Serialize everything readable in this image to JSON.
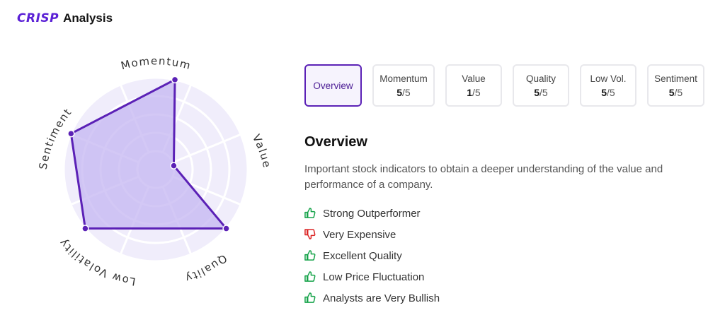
{
  "brand": {
    "logo": "CRISP",
    "title": "Analysis"
  },
  "radar": {
    "axes": [
      {
        "label": "Momentum",
        "score": 5
      },
      {
        "label": "Value",
        "score": 1
      },
      {
        "label": "Quality",
        "score": 5
      },
      {
        "label": "Low Volatility",
        "score": 5
      },
      {
        "label": "Sentiment",
        "score": 5
      }
    ],
    "max": 5,
    "colors": {
      "stroke": "#5b21b6",
      "fill": "#c4b5f1",
      "background": "#f0edfb",
      "grid": "#ffffff"
    }
  },
  "tabs": [
    {
      "label": "Overview"
    },
    {
      "label": "Momentum",
      "score": "5",
      "max": "/5"
    },
    {
      "label": "Value",
      "score": "1",
      "max": "/5"
    },
    {
      "label": "Quality",
      "score": "5",
      "max": "/5"
    },
    {
      "label": "Low Vol.",
      "score": "5",
      "max": "/5"
    },
    {
      "label": "Sentiment",
      "score": "5",
      "max": "/5"
    }
  ],
  "overview": {
    "heading": "Overview",
    "description": "Important stock indicators to obtain a deeper understanding of the value and performance of a company.",
    "items": [
      {
        "text": "Strong Outperformer",
        "icon": "thumbs-up-icon",
        "color": "#16a34a"
      },
      {
        "text": "Very Expensive",
        "icon": "thumbs-down-icon",
        "color": "#dc2626"
      },
      {
        "text": "Excellent Quality",
        "icon": "thumbs-up-icon",
        "color": "#16a34a"
      },
      {
        "text": "Low Price Fluctuation",
        "icon": "thumbs-up-icon",
        "color": "#16a34a"
      },
      {
        "text": "Analysts are Very Bullish",
        "icon": "thumbs-up-icon",
        "color": "#16a34a"
      }
    ]
  }
}
